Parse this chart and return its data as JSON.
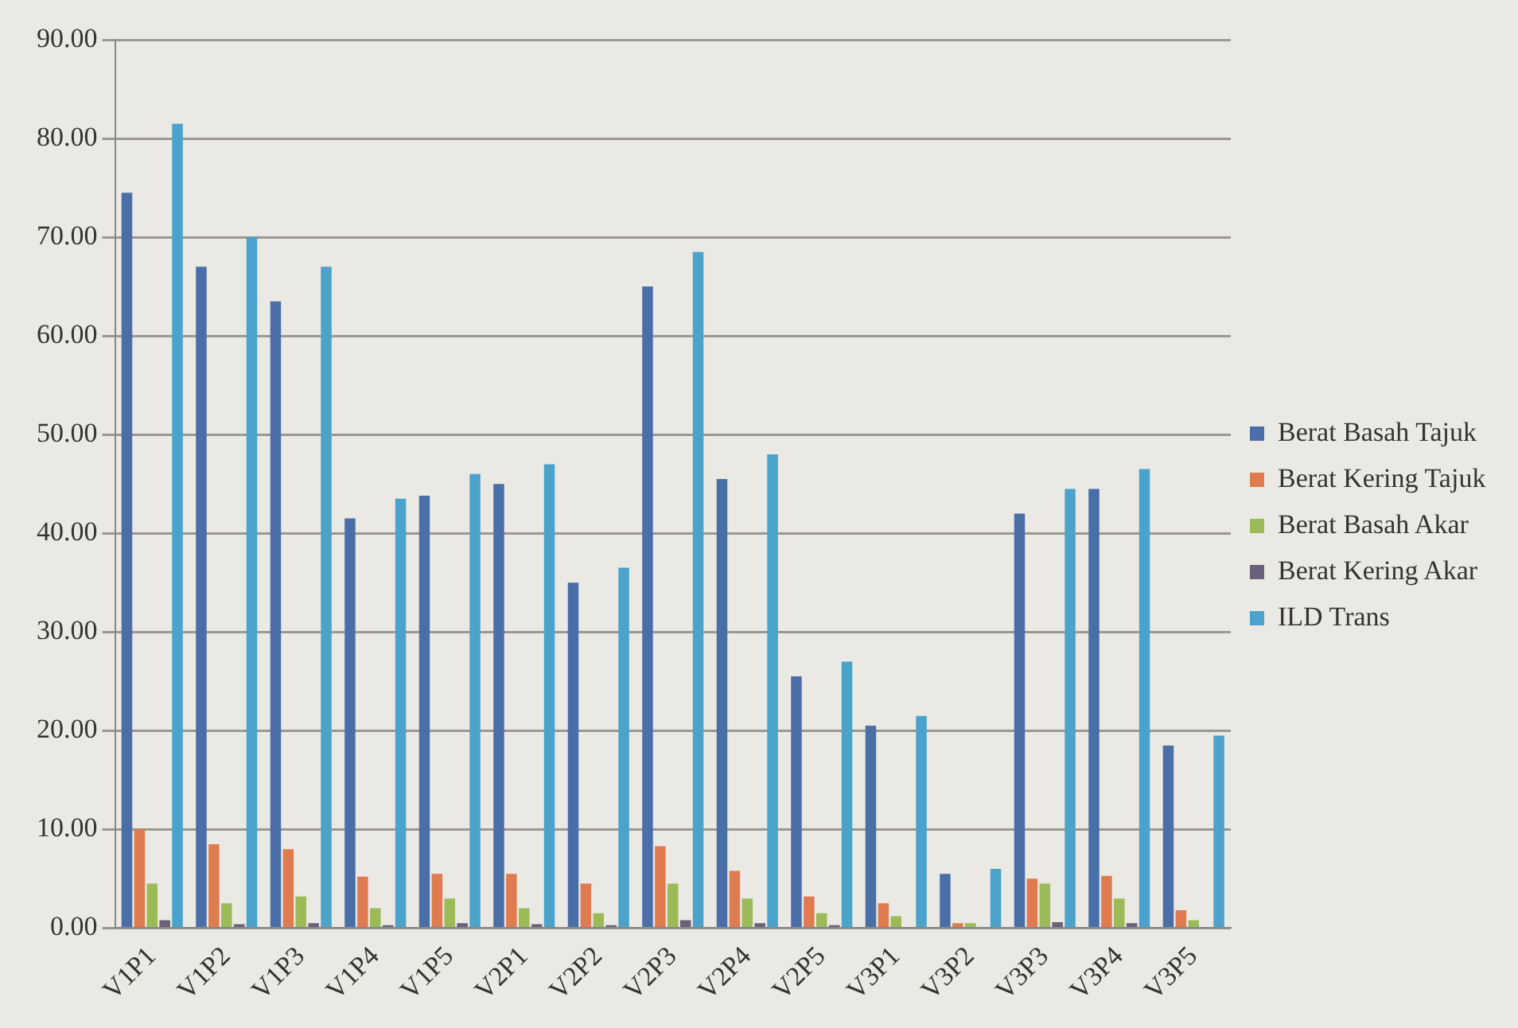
{
  "chart_data": {
    "type": "bar",
    "categories": [
      "V1P1",
      "V1P2",
      "V1P3",
      "V1P4",
      "V1P5",
      "V2P1",
      "V2P2",
      "V2P3",
      "V2P4",
      "V2P5",
      "V3P1",
      "V3P2",
      "V3P3",
      "V3P4",
      "V3P5"
    ],
    "series": [
      {
        "name": "Berat Basah Tajuk",
        "color": "#4a6fa8",
        "values": [
          74.5,
          67,
          63.5,
          41.5,
          43.8,
          45,
          35,
          65,
          45.5,
          25.5,
          20.5,
          5.5,
          42,
          44.5,
          18.5
        ]
      },
      {
        "name": "Berat Kering Tajuk",
        "color": "#e07b50",
        "values": [
          10,
          8.5,
          8,
          5.2,
          5.5,
          5.5,
          4.5,
          8.3,
          5.8,
          3.2,
          2.5,
          0.5,
          5,
          5.3,
          1.8
        ]
      },
      {
        "name": "Berat Basah Akar",
        "color": "#9bbb59",
        "values": [
          4.5,
          2.5,
          3.2,
          2,
          3,
          2,
          1.5,
          4.5,
          3,
          1.5,
          1.2,
          0.5,
          4.5,
          3,
          0.8
        ]
      },
      {
        "name": "Berat Kering Akar",
        "color": "#6b5f7a",
        "values": [
          0.8,
          0.4,
          0.5,
          0.3,
          0.5,
          0.4,
          0.3,
          0.8,
          0.5,
          0.3,
          null,
          null,
          0.6,
          0.5,
          null
        ]
      },
      {
        "name": "ILD Trans",
        "color": "#4ba3cc",
        "values": [
          81.5,
          70,
          67,
          43.5,
          46,
          47,
          36.5,
          68.5,
          48,
          27,
          21.5,
          6,
          44.5,
          46.5,
          19.5
        ]
      }
    ],
    "ylim": [
      0,
      90
    ],
    "yticks": [
      {
        "value": 0,
        "label": "0.00"
      },
      {
        "value": 10,
        "label": "10.00"
      },
      {
        "value": 20,
        "label": "20.00"
      },
      {
        "value": 30,
        "label": "30.00"
      },
      {
        "value": 40,
        "label": "40.00"
      },
      {
        "value": 50,
        "label": "50.00"
      },
      {
        "value": 60,
        "label": "60.00"
      },
      {
        "value": 70,
        "label": "70.00"
      },
      {
        "value": 80,
        "label": "80.00"
      },
      {
        "value": 90,
        "label": "90.00"
      }
    ],
    "grid": "y",
    "legend": "right"
  }
}
